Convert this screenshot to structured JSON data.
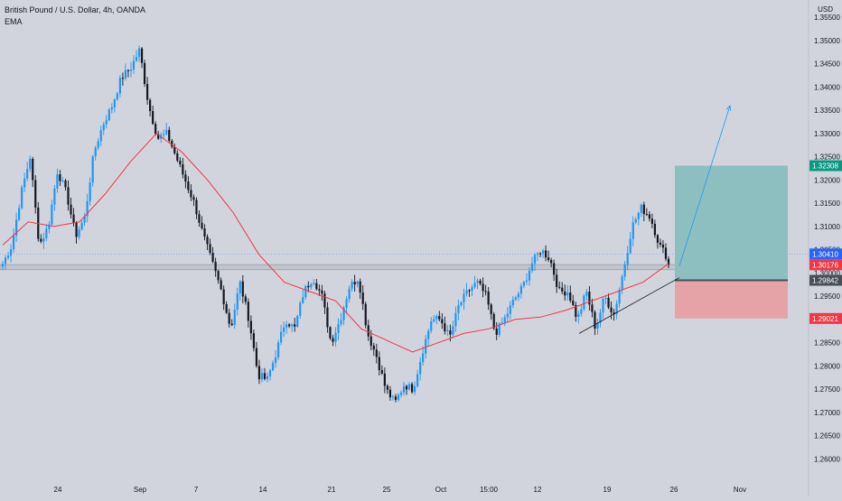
{
  "header": {
    "symbol_title": "British Pound / U.S. Dollar, 4h, OANDA",
    "indicator": "EMA",
    "currency": "USD"
  },
  "colors": {
    "background": "#d1d4dc",
    "bull": "#2196f3",
    "bear": "#131722",
    "ema": "#f23645",
    "target_zone": "#8dbfc0",
    "stop_zone": "#e5a3a7",
    "target_label": "#089981",
    "stop_label": "#f23645",
    "price_label": "#2962ff",
    "entry_label": "#4a4e59",
    "arrow": "#2196f3"
  },
  "chart_data": {
    "type": "candlestick",
    "title": "British Pound / U.S. Dollar, 4h, OANDA",
    "series_name": "British Pound / U.S. Dollar",
    "indicator": "EMA",
    "ylim": [
      1.256,
      1.356
    ],
    "yticks": [
      "1.35500",
      "1.35000",
      "1.34500",
      "1.34000",
      "1.33500",
      "1.33000",
      "1.32500",
      "1.32000",
      "1.31500",
      "1.31000",
      "1.30500",
      "1.30000",
      "1.29500",
      "1.29000",
      "1.28500",
      "1.28000",
      "1.27500",
      "1.27000",
      "1.26500",
      "1.26000"
    ],
    "xlabels": [
      "24",
      "Sep",
      "7",
      "14",
      "21",
      "25",
      "Oct",
      "15:00",
      "12",
      "19",
      "26",
      "Nov"
    ],
    "anchors": [
      [
        1.302,
        1.306
      ],
      [
        1.317,
        1.325
      ],
      [
        1.306,
        1.31
      ],
      [
        1.322,
        1.317
      ],
      [
        1.308,
        1.312
      ],
      [
        1.326,
        1.332
      ],
      [
        1.336,
        1.342
      ],
      [
        1.344,
        1.348
      ],
      [
        1.336,
        1.329
      ],
      [
        1.33,
        1.325
      ],
      [
        1.32,
        1.315
      ],
      [
        1.308,
        1.302
      ],
      [
        1.296,
        1.288
      ],
      [
        1.298,
        1.29
      ],
      [
        1.278,
        1.277
      ],
      [
        1.283,
        1.29
      ],
      [
        1.288,
        1.296
      ],
      [
        1.299,
        1.295
      ],
      [
        1.285,
        1.29
      ],
      [
        1.297,
        1.299
      ],
      [
        1.287,
        1.282
      ],
      [
        1.275,
        1.272
      ],
      [
        1.276,
        1.275
      ],
      [
        1.283,
        1.29
      ],
      [
        1.29,
        1.286
      ],
      [
        1.293,
        1.296
      ],
      [
        1.298,
        1.295
      ],
      [
        1.287,
        1.29
      ],
      [
        1.294,
        1.297
      ],
      [
        1.302,
        1.305
      ],
      [
        1.303,
        1.296
      ],
      [
        1.296,
        1.29
      ],
      [
        1.296,
        1.288
      ],
      [
        1.295,
        1.291
      ],
      [
        1.3,
        1.31
      ],
      [
        1.314,
        1.312
      ],
      [
        1.306,
        1.303
      ]
    ],
    "ema_points": [
      [
        1.306,
        1.311,
        1.31,
        1.311,
        1.317,
        1.324,
        1.33,
        1.326,
        1.32,
        1.313,
        1.304,
        1.298,
        1.296,
        1.294,
        1.288,
        1.2855,
        1.283,
        1.285,
        1.287,
        1.288,
        1.29,
        1.2905,
        1.292,
        1.294,
        1.296,
        1.298,
        1.302
      ]
    ],
    "horizontal_lines": {
      "last_price": 1.3041,
      "support_zone": [
        1.3007,
        1.3018
      ]
    },
    "position": {
      "direction": "long",
      "entry": 1.29842,
      "target": 1.32308,
      "stop": 1.29021
    },
    "price_labels": {
      "target": "1.32308",
      "last": "1.30410",
      "current": "1.30176",
      "entry": "1.29842",
      "stop": "1.29021"
    },
    "trendline": {
      "from": [
        1.287,
        1.299
      ]
    },
    "projection": {
      "from": 1.3015,
      "to": 1.336
    },
    "grid": false,
    "legend_position": "top-left"
  }
}
